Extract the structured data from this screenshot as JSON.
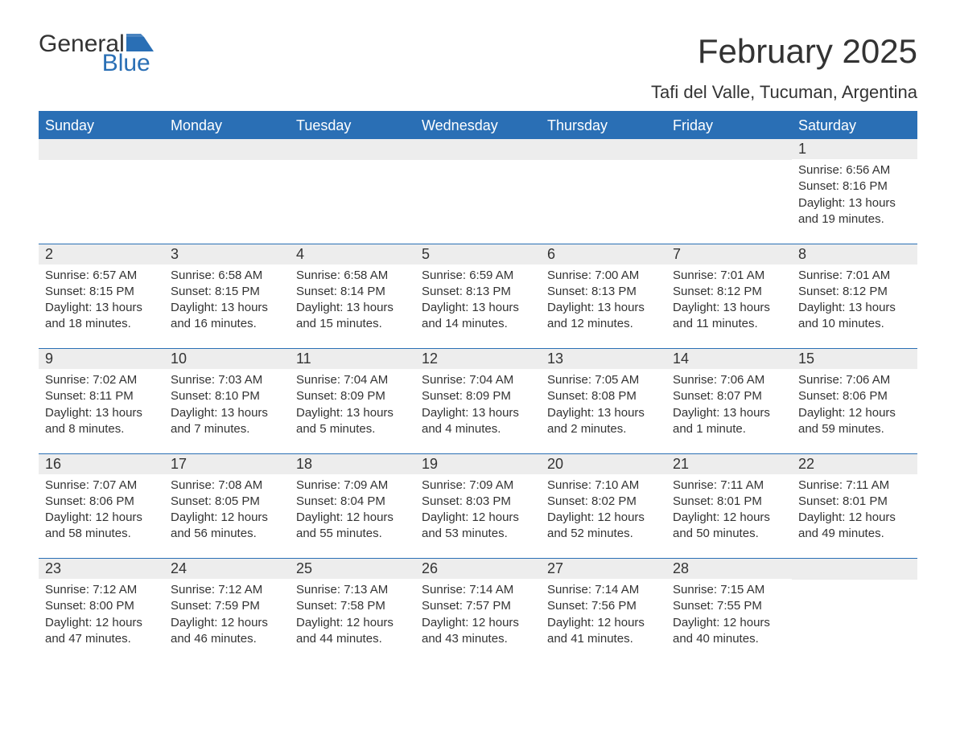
{
  "logo": {
    "textA": "General",
    "textB": "Blue"
  },
  "title": "February 2025",
  "subtitle": "Tafi del Valle, Tucuman, Argentina",
  "colors": {
    "accent": "#2a6fb5",
    "headerText": "#ffffff",
    "dayNumBg": "#ededed",
    "text": "#333333",
    "background": "#ffffff"
  },
  "dayHeaders": [
    "Sunday",
    "Monday",
    "Tuesday",
    "Wednesday",
    "Thursday",
    "Friday",
    "Saturday"
  ],
  "weeks": [
    [
      {
        "blank": true
      },
      {
        "blank": true
      },
      {
        "blank": true
      },
      {
        "blank": true
      },
      {
        "blank": true
      },
      {
        "blank": true
      },
      {
        "day": "1",
        "sunrise": "Sunrise: 6:56 AM",
        "sunset": "Sunset: 8:16 PM",
        "daylight": "Daylight: 13 hours and 19 minutes."
      }
    ],
    [
      {
        "day": "2",
        "sunrise": "Sunrise: 6:57 AM",
        "sunset": "Sunset: 8:15 PM",
        "daylight": "Daylight: 13 hours and 18 minutes."
      },
      {
        "day": "3",
        "sunrise": "Sunrise: 6:58 AM",
        "sunset": "Sunset: 8:15 PM",
        "daylight": "Daylight: 13 hours and 16 minutes."
      },
      {
        "day": "4",
        "sunrise": "Sunrise: 6:58 AM",
        "sunset": "Sunset: 8:14 PM",
        "daylight": "Daylight: 13 hours and 15 minutes."
      },
      {
        "day": "5",
        "sunrise": "Sunrise: 6:59 AM",
        "sunset": "Sunset: 8:13 PM",
        "daylight": "Daylight: 13 hours and 14 minutes."
      },
      {
        "day": "6",
        "sunrise": "Sunrise: 7:00 AM",
        "sunset": "Sunset: 8:13 PM",
        "daylight": "Daylight: 13 hours and 12 minutes."
      },
      {
        "day": "7",
        "sunrise": "Sunrise: 7:01 AM",
        "sunset": "Sunset: 8:12 PM",
        "daylight": "Daylight: 13 hours and 11 minutes."
      },
      {
        "day": "8",
        "sunrise": "Sunrise: 7:01 AM",
        "sunset": "Sunset: 8:12 PM",
        "daylight": "Daylight: 13 hours and 10 minutes."
      }
    ],
    [
      {
        "day": "9",
        "sunrise": "Sunrise: 7:02 AM",
        "sunset": "Sunset: 8:11 PM",
        "daylight": "Daylight: 13 hours and 8 minutes."
      },
      {
        "day": "10",
        "sunrise": "Sunrise: 7:03 AM",
        "sunset": "Sunset: 8:10 PM",
        "daylight": "Daylight: 13 hours and 7 minutes."
      },
      {
        "day": "11",
        "sunrise": "Sunrise: 7:04 AM",
        "sunset": "Sunset: 8:09 PM",
        "daylight": "Daylight: 13 hours and 5 minutes."
      },
      {
        "day": "12",
        "sunrise": "Sunrise: 7:04 AM",
        "sunset": "Sunset: 8:09 PM",
        "daylight": "Daylight: 13 hours and 4 minutes."
      },
      {
        "day": "13",
        "sunrise": "Sunrise: 7:05 AM",
        "sunset": "Sunset: 8:08 PM",
        "daylight": "Daylight: 13 hours and 2 minutes."
      },
      {
        "day": "14",
        "sunrise": "Sunrise: 7:06 AM",
        "sunset": "Sunset: 8:07 PM",
        "daylight": "Daylight: 13 hours and 1 minute."
      },
      {
        "day": "15",
        "sunrise": "Sunrise: 7:06 AM",
        "sunset": "Sunset: 8:06 PM",
        "daylight": "Daylight: 12 hours and 59 minutes."
      }
    ],
    [
      {
        "day": "16",
        "sunrise": "Sunrise: 7:07 AM",
        "sunset": "Sunset: 8:06 PM",
        "daylight": "Daylight: 12 hours and 58 minutes."
      },
      {
        "day": "17",
        "sunrise": "Sunrise: 7:08 AM",
        "sunset": "Sunset: 8:05 PM",
        "daylight": "Daylight: 12 hours and 56 minutes."
      },
      {
        "day": "18",
        "sunrise": "Sunrise: 7:09 AM",
        "sunset": "Sunset: 8:04 PM",
        "daylight": "Daylight: 12 hours and 55 minutes."
      },
      {
        "day": "19",
        "sunrise": "Sunrise: 7:09 AM",
        "sunset": "Sunset: 8:03 PM",
        "daylight": "Daylight: 12 hours and 53 minutes."
      },
      {
        "day": "20",
        "sunrise": "Sunrise: 7:10 AM",
        "sunset": "Sunset: 8:02 PM",
        "daylight": "Daylight: 12 hours and 52 minutes."
      },
      {
        "day": "21",
        "sunrise": "Sunrise: 7:11 AM",
        "sunset": "Sunset: 8:01 PM",
        "daylight": "Daylight: 12 hours and 50 minutes."
      },
      {
        "day": "22",
        "sunrise": "Sunrise: 7:11 AM",
        "sunset": "Sunset: 8:01 PM",
        "daylight": "Daylight: 12 hours and 49 minutes."
      }
    ],
    [
      {
        "day": "23",
        "sunrise": "Sunrise: 7:12 AM",
        "sunset": "Sunset: 8:00 PM",
        "daylight": "Daylight: 12 hours and 47 minutes."
      },
      {
        "day": "24",
        "sunrise": "Sunrise: 7:12 AM",
        "sunset": "Sunset: 7:59 PM",
        "daylight": "Daylight: 12 hours and 46 minutes."
      },
      {
        "day": "25",
        "sunrise": "Sunrise: 7:13 AM",
        "sunset": "Sunset: 7:58 PM",
        "daylight": "Daylight: 12 hours and 44 minutes."
      },
      {
        "day": "26",
        "sunrise": "Sunrise: 7:14 AM",
        "sunset": "Sunset: 7:57 PM",
        "daylight": "Daylight: 12 hours and 43 minutes."
      },
      {
        "day": "27",
        "sunrise": "Sunrise: 7:14 AM",
        "sunset": "Sunset: 7:56 PM",
        "daylight": "Daylight: 12 hours and 41 minutes."
      },
      {
        "day": "28",
        "sunrise": "Sunrise: 7:15 AM",
        "sunset": "Sunset: 7:55 PM",
        "daylight": "Daylight: 12 hours and 40 minutes."
      },
      {
        "blank": true
      }
    ]
  ]
}
